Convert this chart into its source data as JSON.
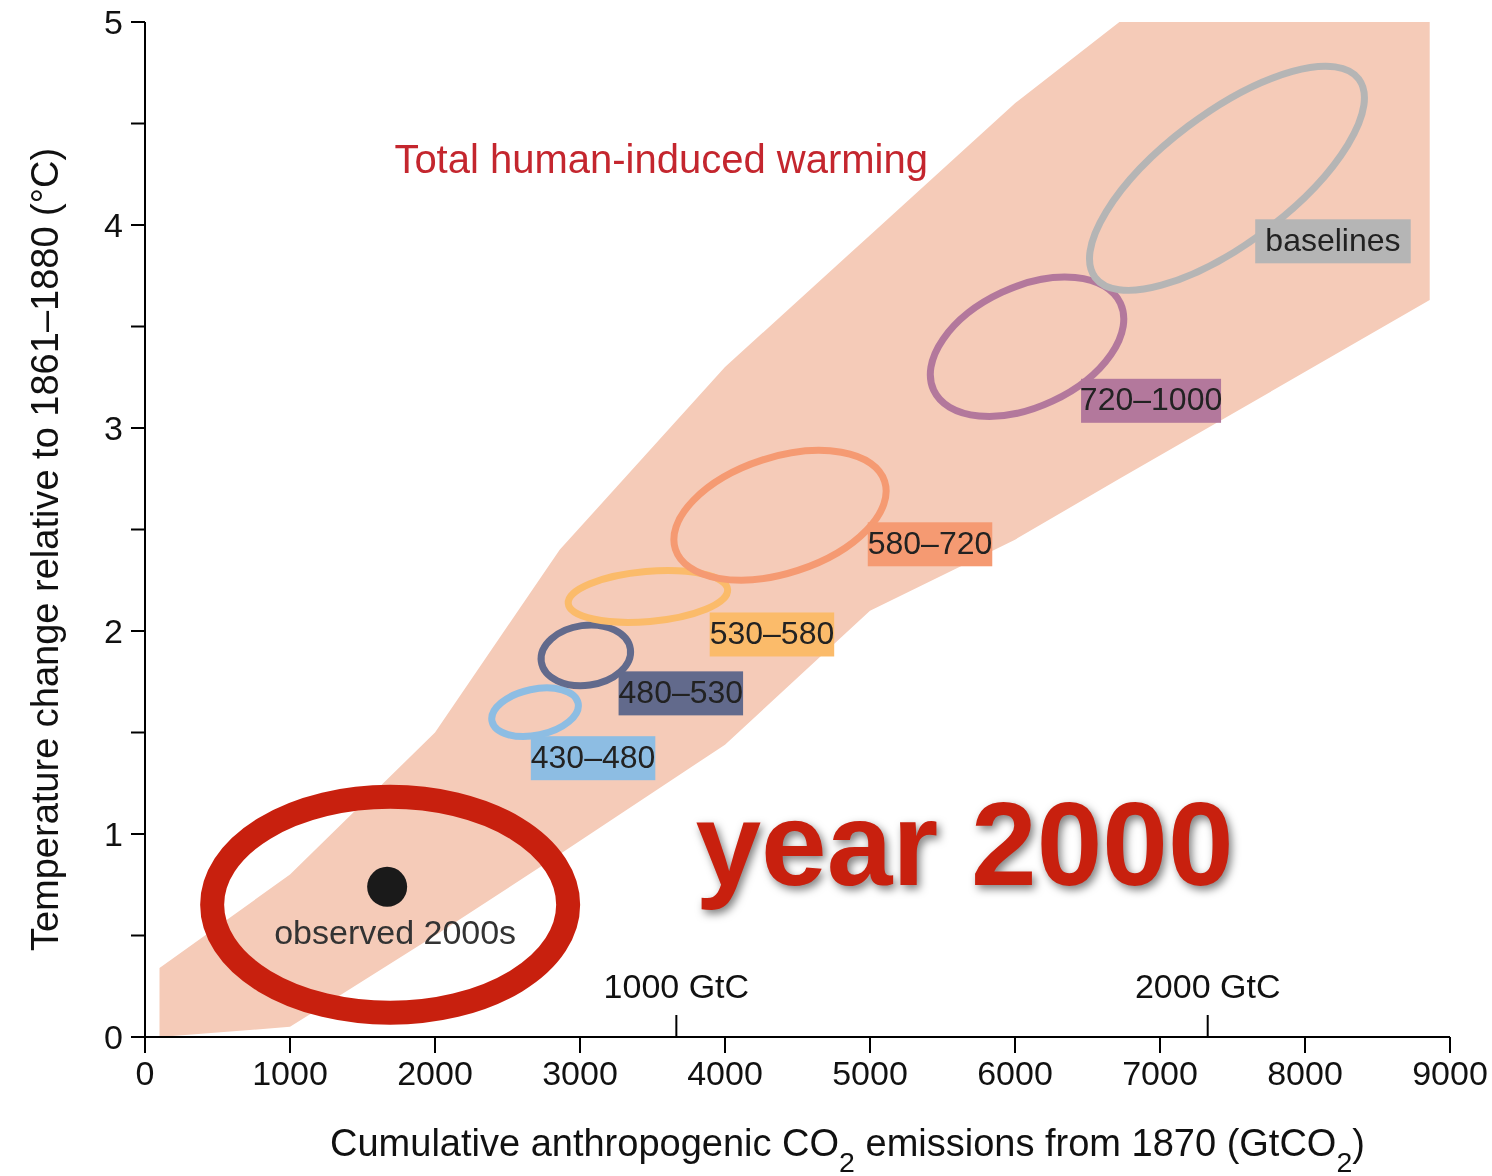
{
  "chart_data": {
    "type": "area",
    "xlabel": "Cumulative anthropogenic CO$_{2}$ emissions from 1870  (GtCO$_{2}$)",
    "ylabel": "Temperature change relative to 1861–1880 (°C)",
    "xlim": [
      0,
      9000
    ],
    "xticks": [
      0,
      1000,
      2000,
      3000,
      4000,
      5000,
      6000,
      7000,
      8000,
      9000
    ],
    "ylim": [
      0,
      5
    ],
    "yticks": [
      0,
      {
        "value": 0.5,
        "label": null
      },
      1,
      {
        "value": 1.5,
        "label": null
      },
      2,
      {
        "value": 2.5,
        "label": null
      },
      3,
      {
        "value": 3.5,
        "label": null
      },
      4,
      {
        "value": 4.5,
        "label": null
      },
      5
    ],
    "x2lim": [
      0,
      2456
    ],
    "x2ticks": [
      {
        "value": 1000,
        "label": "1000 GtC"
      },
      {
        "value": 2000,
        "label": "2000 GtC"
      }
    ],
    "annotations": [
      "Total human-induced warming",
      "430–480",
      "480–530",
      "530–580",
      "580–720",
      "720–1000",
      "baselines",
      "year 2000"
    ],
    "series": [
      {
        "color": "#f5cbb8",
        "x": [
          100,
          1000,
          2000,
          2860,
          4000,
          5000,
          6000,
          6720,
          8860
        ],
        "values": [
          null,
          null,
          null,
          null,
          null,
          null,
          null,
          null,
          null
        ],
        "lower": [
          0,
          0.05,
          0.5,
          0.9,
          1.44,
          2.1,
          2.45,
          2.75,
          3.63
        ],
        "upper": [
          0.34,
          0.8,
          1.5,
          2.4,
          3.3,
          3.95,
          4.6,
          5,
          5
        ]
      },
      {
        "type": "scatter",
        "name": "observed 2000s",
        "color": "#1a1a1a",
        "marker": "circle",
        "x": [
          1670
        ],
        "values": [
          0.74
        ]
      }
    ]
  }
}
